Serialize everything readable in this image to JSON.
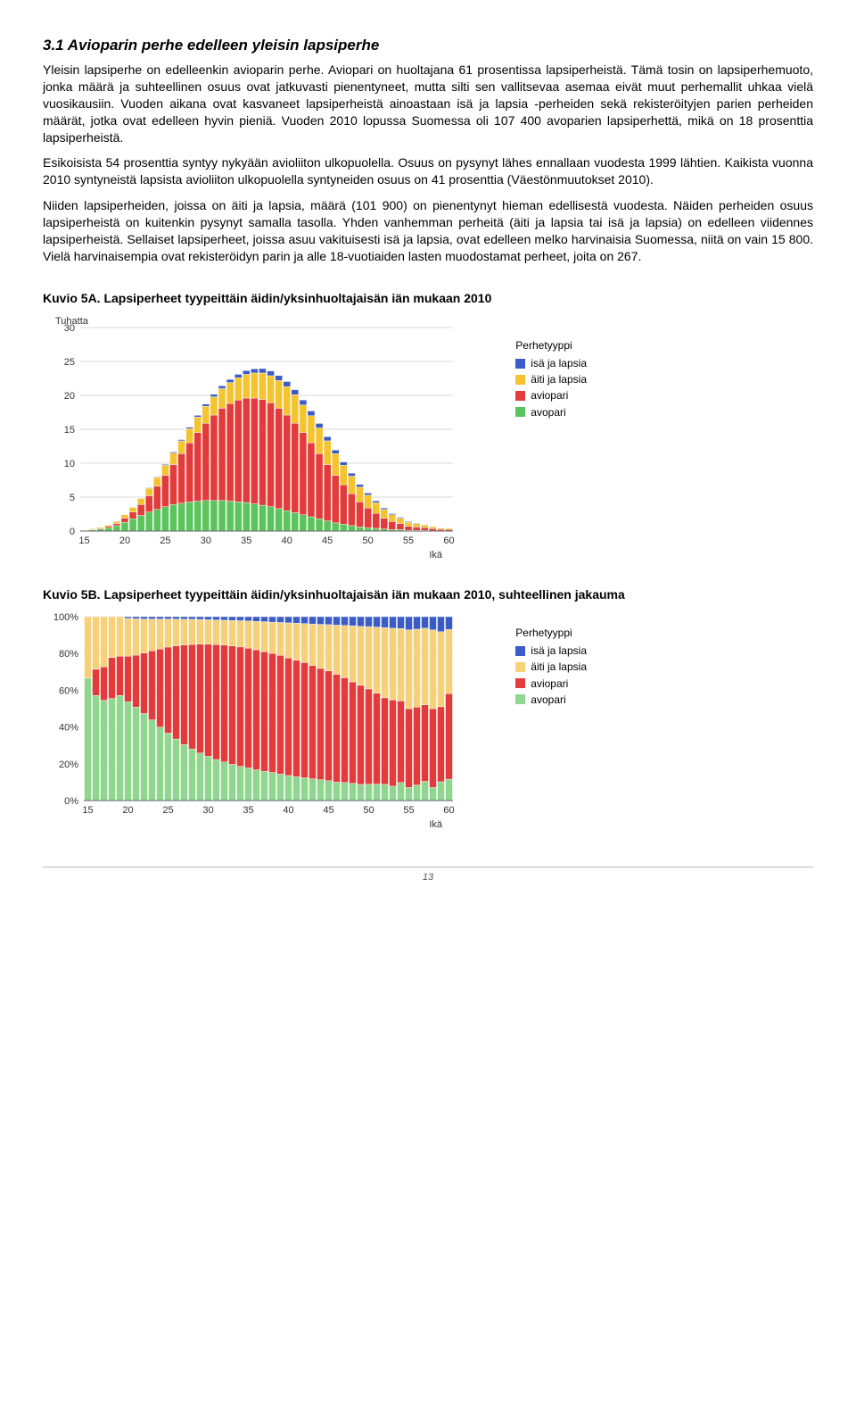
{
  "heading": "3.1 Avioparin perhe edelleen yleisin lapsiperhe",
  "paragraphs": [
    "Yleisin lapsiperhe on edelleenkin avioparin perhe. Aviopari on huoltajana 61 prosentissa lapsiperheistä. Tämä tosin on lapsiperhemuoto, jonka määrä ja suhteellinen osuus ovat jatkuvasti pienentyneet, mutta silti sen vallitsevaa asemaa eivät muut perhemallit uhkaa vielä vuosikausiin. Vuoden aikana ovat kasvaneet lapsiperheistä ainoastaan isä ja lapsia -perheiden sekä rekisteröityjen parien perheiden määrät, jotka ovat edelleen hyvin pieniä. Vuoden 2010 lopussa Suomessa oli 107 400 avoparien lapsiperhettä, mikä on 18 prosenttia lapsiperheistä.",
    "Esikoisista 54 prosenttia syntyy nykyään avioliiton ulkopuolella. Osuus on pysynyt lähes ennallaan vuodesta 1999 lähtien. Kaikista vuonna 2010 syntyneistä lapsista avioliiton ulkopuolella syntyneiden osuus on 41 prosenttia (Väestönmuutokset 2010).",
    "Niiden lapsiperheiden, joissa on äiti ja lapsia, määrä (101 900) on pienentynyt hieman edellisestä vuodesta. Näiden perheiden osuus lapsiperheistä on kuitenkin pysynyt samalla tasolla. Yhden vanhemman perheitä (äiti ja lapsia tai isä ja lapsia) on edelleen viidennes lapsiperheistä. Sellaiset lapsiperheet, joissa asuu vakituisesti isä ja lapsia, ovat edelleen melko harvinaisia Suomessa, niitä on vain 15 800. Vielä harvinaisempia ovat rekisteröidyn parin ja alle 18-vuotiaiden lasten muodostamat perheet, joita on 267."
  ],
  "chartA": {
    "title": "Kuvio 5A. Lapsiperheet tyypeittäin äidin/yksinhuoltajaisän iän mukaan 2010",
    "type": "stacked-bar",
    "y_title": "Tuhatta",
    "x_title": "Ikä",
    "x_ticks": [
      15,
      20,
      25,
      30,
      35,
      40,
      45,
      50,
      55,
      60
    ],
    "y_ticks": [
      0,
      5,
      10,
      15,
      20,
      25,
      30
    ],
    "ylim": [
      0,
      30
    ],
    "legend_title": "Perhetyyppi",
    "legend": [
      {
        "label": "isä ja lapsia",
        "color": "#3b5bc6"
      },
      {
        "label": "äiti ja lapsia",
        "color": "#f4c430"
      },
      {
        "label": "aviopari",
        "color": "#e23b3b"
      },
      {
        "label": "avopari",
        "color": "#5cc45c"
      }
    ],
    "ages": [
      15,
      16,
      17,
      18,
      19,
      20,
      21,
      22,
      23,
      24,
      25,
      26,
      27,
      28,
      29,
      30,
      31,
      32,
      33,
      34,
      35,
      36,
      37,
      38,
      39,
      40,
      41,
      42,
      43,
      44,
      45,
      46,
      47,
      48,
      49,
      50,
      51,
      52,
      53,
      54,
      55,
      56,
      57,
      58,
      59,
      60
    ],
    "series": {
      "avopari": [
        0.1,
        0.2,
        0.3,
        0.5,
        0.8,
        1.3,
        1.8,
        2.3,
        2.8,
        3.2,
        3.6,
        3.9,
        4.1,
        4.3,
        4.4,
        4.5,
        4.5,
        4.5,
        4.4,
        4.3,
        4.2,
        4.0,
        3.8,
        3.6,
        3.3,
        3.0,
        2.7,
        2.4,
        2.1,
        1.8,
        1.5,
        1.2,
        1.0,
        0.8,
        0.6,
        0.5,
        0.4,
        0.3,
        0.2,
        0.2,
        0.1,
        0.1,
        0.1,
        0.05,
        0.05,
        0.05
      ],
      "aviopari": [
        0.0,
        0.05,
        0.1,
        0.2,
        0.3,
        0.6,
        1.0,
        1.6,
        2.4,
        3.4,
        4.6,
        5.9,
        7.3,
        8.7,
        10.1,
        11.4,
        12.6,
        13.6,
        14.4,
        15.0,
        15.4,
        15.6,
        15.6,
        15.3,
        14.8,
        14.1,
        13.2,
        12.1,
        10.9,
        9.6,
        8.3,
        7.0,
        5.8,
        4.7,
        3.7,
        2.9,
        2.2,
        1.6,
        1.2,
        0.9,
        0.6,
        0.5,
        0.4,
        0.3,
        0.2,
        0.2
      ],
      "aiti": [
        0.05,
        0.1,
        0.15,
        0.2,
        0.3,
        0.5,
        0.7,
        0.9,
        1.1,
        1.3,
        1.5,
        1.7,
        1.9,
        2.1,
        2.3,
        2.5,
        2.7,
        2.9,
        3.1,
        3.3,
        3.5,
        3.7,
        3.9,
        4.0,
        4.1,
        4.2,
        4.2,
        4.1,
        4.0,
        3.8,
        3.5,
        3.2,
        2.9,
        2.6,
        2.2,
        1.9,
        1.6,
        1.3,
        1.0,
        0.8,
        0.6,
        0.5,
        0.4,
        0.3,
        0.2,
        0.15
      ],
      "isa": [
        0.0,
        0.0,
        0.0,
        0.0,
        0.0,
        0.02,
        0.04,
        0.06,
        0.08,
        0.1,
        0.12,
        0.15,
        0.18,
        0.21,
        0.25,
        0.3,
        0.35,
        0.4,
        0.45,
        0.5,
        0.55,
        0.6,
        0.65,
        0.7,
        0.72,
        0.74,
        0.74,
        0.72,
        0.7,
        0.66,
        0.6,
        0.54,
        0.48,
        0.42,
        0.36,
        0.3,
        0.25,
        0.2,
        0.16,
        0.13,
        0.1,
        0.08,
        0.06,
        0.05,
        0.04,
        0.03
      ]
    },
    "background_color": "#ffffff",
    "grid_color": "#cccccc",
    "text_color": "#333333",
    "bar_gap": 0.12
  },
  "chartB": {
    "title": "Kuvio 5B. Lapsiperheet tyypeittäin äidin/yksinhuoltajaisän iän mukaan 2010, suhteellinen jakauma",
    "type": "stacked-bar-100",
    "x_title": "Ikä",
    "x_ticks": [
      15,
      20,
      25,
      30,
      35,
      40,
      45,
      50,
      55,
      60
    ],
    "y_ticks": [
      0,
      20,
      40,
      60,
      80,
      100
    ],
    "ylim": [
      0,
      100
    ],
    "legend_title": "Perhetyyppi",
    "legend": [
      {
        "label": "isä ja lapsia",
        "color": "#3b5bc6"
      },
      {
        "label": "äiti ja lapsia",
        "color": "#f6d17a"
      },
      {
        "label": "aviopari",
        "color": "#e23b3b"
      },
      {
        "label": "avopari",
        "color": "#8fd68f"
      }
    ],
    "background_color": "#ffffff",
    "grid_color": "#cccccc",
    "text_color": "#333333",
    "bar_gap": 0.12
  },
  "page_number": "13"
}
